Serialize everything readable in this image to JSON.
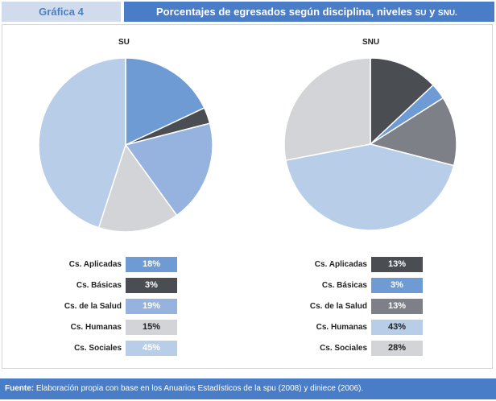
{
  "header": {
    "figure_label": "Gráfica 4",
    "title": "Porcentajes de egresados según disciplina, niveles",
    "title_su": "SU",
    "title_and": "y",
    "title_snu": "SNU."
  },
  "chart_data": [
    {
      "type": "pie",
      "title": "SU",
      "categories": [
        "Cs. Aplicadas",
        "Cs. Básicas",
        "Cs. de la Salud",
        "Cs. Humanas",
        "Cs. Sociales"
      ],
      "values": [
        18,
        3,
        19,
        15,
        45
      ],
      "labels": [
        "18%",
        "3%",
        "19%",
        "15%",
        "45%"
      ],
      "colors": [
        "#6f9bd4",
        "#4a4d52",
        "#95b3de",
        "#d2d4d8",
        "#b8cde8"
      ],
      "label_colors": [
        "#ffffff",
        "#ffffff",
        "#ffffff",
        "#222222",
        "#ffffff"
      ]
    },
    {
      "type": "pie",
      "title": "SNU",
      "categories": [
        "Cs. Aplicadas",
        "Cs. Básicas",
        "Cs. de la Salud",
        "Cs. Humanas",
        "Cs. Sociales"
      ],
      "values": [
        13,
        3,
        13,
        43,
        28
      ],
      "labels": [
        "13%",
        "3%",
        "13%",
        "43%",
        "28%"
      ],
      "colors": [
        "#4a4d52",
        "#6f9bd4",
        "#7d8086",
        "#b8cde8",
        "#d2d4d8"
      ],
      "label_colors": [
        "#ffffff",
        "#ffffff",
        "#ffffff",
        "#222222",
        "#222222"
      ]
    }
  ],
  "footer": {
    "source_label": "Fuente:",
    "source_text": "Elaboración propia con base en los Anuarios Estadísticos de la spu (2008) y diniece (2006)."
  }
}
